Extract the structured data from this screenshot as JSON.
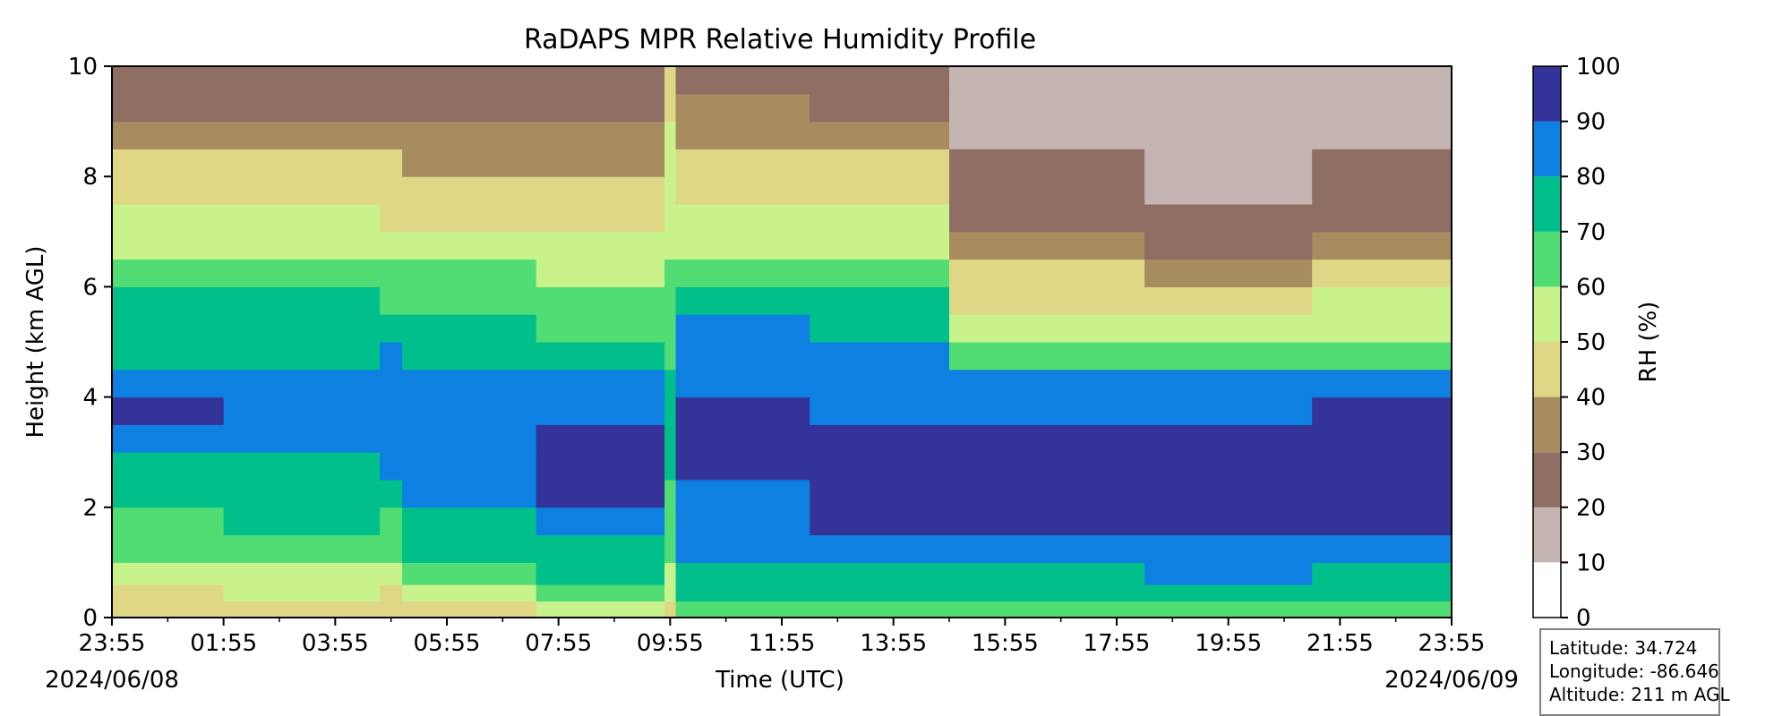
{
  "chart_data": {
    "type": "heatmap",
    "title": "RaDAPS MPR Relative Humidity Profile",
    "xlabel": "Time (UTC)",
    "ylabel": "Height (km AGL)",
    "x_tick_labels": [
      "23:55",
      "01:55",
      "03:55",
      "05:55",
      "07:55",
      "09:55",
      "11:55",
      "13:55",
      "15:55",
      "17:55",
      "19:55",
      "21:55",
      "23:55"
    ],
    "x_hours_since_start": [
      0,
      2,
      4,
      6,
      8,
      10,
      12,
      14,
      16,
      18,
      20,
      22,
      24
    ],
    "start_date": "2024/06/08",
    "end_date": "2024/06/09",
    "xlim_hours": [
      0,
      24
    ],
    "ylim": [
      0,
      10
    ],
    "y_ticks": [
      0,
      2,
      4,
      6,
      8,
      10
    ],
    "colorbar": {
      "label": "RH (%)",
      "levels": [
        0,
        10,
        20,
        30,
        40,
        50,
        60,
        70,
        80,
        90,
        100
      ],
      "colors": [
        "#ffffff",
        "#c4b5b2",
        "#8f6e63",
        "#a68c5f",
        "#dfd785",
        "#c8f28c",
        "#52dc74",
        "#00bf8b",
        "#0e80e2",
        "#33339a"
      ]
    },
    "profile_heights_km": [
      0,
      0.3,
      0.6,
      1.0,
      1.5,
      2.0,
      2.5,
      3.0,
      3.5,
      4.0,
      4.5,
      5.0,
      5.5,
      6.0,
      6.5,
      7.0,
      7.5,
      8.0,
      8.5,
      9.0,
      9.5,
      10
    ],
    "profiles": [
      {
        "start_h": 0.0,
        "end_h": 2.0,
        "rh": [
          42,
          48,
          56,
          62,
          68,
          72,
          76,
          86,
          92,
          86,
          74,
          72,
          72,
          68,
          58,
          52,
          46,
          44,
          36,
          28,
          26,
          24
        ]
      },
      {
        "start_h": 2.0,
        "end_h": 4.8,
        "rh": [
          44,
          52,
          58,
          64,
          70,
          72,
          76,
          84,
          86,
          82,
          72,
          72,
          70,
          64,
          58,
          54,
          48,
          42,
          34,
          28,
          26,
          22
        ]
      },
      {
        "start_h": 4.8,
        "end_h": 5.2,
        "rh": [
          40,
          46,
          54,
          60,
          66,
          72,
          80,
          86,
          88,
          84,
          82,
          78,
          68,
          60,
          54,
          48,
          44,
          40,
          30,
          26,
          22,
          18
        ]
      },
      {
        "start_h": 5.2,
        "end_h": 7.6,
        "rh": [
          48,
          58,
          66,
          72,
          76,
          82,
          86,
          88,
          86,
          82,
          78,
          72,
          64,
          60,
          54,
          48,
          44,
          38,
          32,
          28,
          24,
          18
        ]
      },
      {
        "start_h": 7.6,
        "end_h": 9.9,
        "rh": [
          58,
          66,
          74,
          76,
          84,
          92,
          94,
          92,
          88,
          84,
          76,
          68,
          62,
          58,
          52,
          48,
          42,
          36,
          32,
          28,
          26,
          22
        ]
      },
      {
        "start_h": 9.9,
        "end_h": 10.1,
        "rh": [
          46,
          52,
          58,
          62,
          66,
          68,
          70,
          72,
          72,
          70,
          68,
          64,
          62,
          60,
          58,
          56,
          54,
          52,
          50,
          48,
          46,
          44
        ]
      },
      {
        "start_h": 10.1,
        "end_h": 12.5,
        "rh": [
          66,
          72,
          76,
          82,
          86,
          88,
          92,
          94,
          92,
          88,
          86,
          82,
          74,
          66,
          58,
          54,
          48,
          44,
          38,
          32,
          28,
          24
        ]
      },
      {
        "start_h": 12.5,
        "end_h": 15.0,
        "rh": [
          62,
          72,
          78,
          86,
          92,
          94,
          94,
          92,
          88,
          86,
          82,
          78,
          72,
          64,
          58,
          54,
          48,
          42,
          34,
          28,
          24,
          22
        ]
      },
      {
        "start_h": 15.0,
        "end_h": 18.5,
        "rh": [
          62,
          72,
          78,
          86,
          92,
          94,
          94,
          92,
          88,
          84,
          64,
          54,
          48,
          42,
          34,
          28,
          24,
          22,
          18,
          16,
          14,
          12
        ]
      },
      {
        "start_h": 18.5,
        "end_h": 21.5,
        "rh": [
          66,
          74,
          82,
          86,
          92,
          94,
          94,
          92,
          88,
          82,
          62,
          56,
          48,
          38,
          28,
          22,
          18,
          16,
          14,
          12,
          10,
          8
        ]
      },
      {
        "start_h": 21.5,
        "end_h": 24.0,
        "rh": [
          64,
          72,
          78,
          84,
          92,
          94,
          94,
          94,
          92,
          84,
          66,
          58,
          52,
          46,
          38,
          28,
          24,
          22,
          18,
          16,
          14,
          12
        ]
      }
    ],
    "station": {
      "latitude": "Latitude: 34.724",
      "longitude": "Longitude: -86.646",
      "altitude": "Altitude: 211 m AGL"
    }
  }
}
